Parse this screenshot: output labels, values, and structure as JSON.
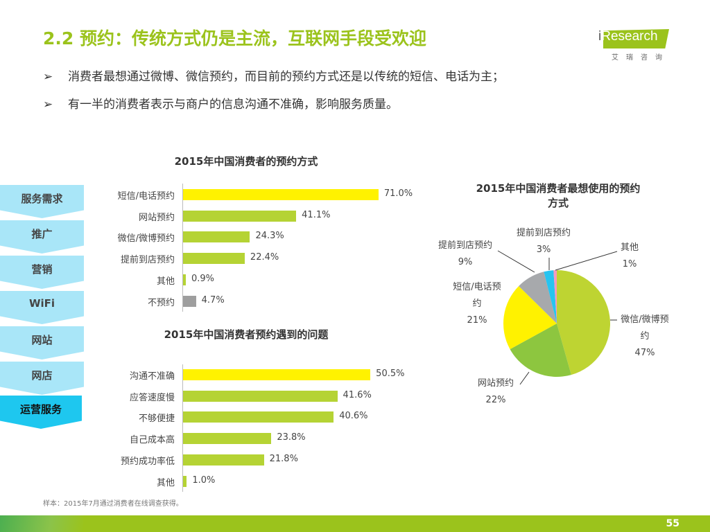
{
  "header": {
    "title": "2.2 预约：传统方式仍是主流，互联网手段受欢迎",
    "logo_text": "iResearch",
    "logo_cn": "艾瑞咨询"
  },
  "bullets": [
    {
      "marker": "➢",
      "text": "消费者最想通过微博、微信预约，而目前的预约方式还是以传统的短信、电话为主；"
    },
    {
      "marker": "➢",
      "text": "有一半的消费者表示与商户的信息沟通不准确，影响服务质量。"
    }
  ],
  "steps": [
    "服务需求",
    "推广",
    "营销",
    "WiFi",
    "网站",
    "网店",
    "运营服务"
  ],
  "chart_data": [
    {
      "type": "bar",
      "orientation": "horizontal",
      "title": "2015年中国消费者的预约方式",
      "categories": [
        "短信/电话预约",
        "网站预约",
        "微信/微博预约",
        "提前到店预约",
        "其他",
        "不预约"
      ],
      "values": [
        71.0,
        41.1,
        24.3,
        22.4,
        0.9,
        4.7
      ],
      "labels": [
        "71.0%",
        "41.1%",
        "24.3%",
        "22.4%",
        "0.9%",
        "4.7%"
      ],
      "colors": [
        "#fff200",
        "#b5d334",
        "#b5d334",
        "#b5d334",
        "#b5d334",
        "#9e9e9e"
      ]
    },
    {
      "type": "bar",
      "orientation": "horizontal",
      "title": "2015年中国消费者预约遇到的问题",
      "categories": [
        "沟通不准确",
        "应答速度慢",
        "不够便捷",
        "自己成本高",
        "预约成功率低",
        "其他"
      ],
      "values": [
        50.5,
        41.6,
        40.6,
        23.8,
        21.8,
        1.0
      ],
      "labels": [
        "50.5%",
        "41.6%",
        "40.6%",
        "23.8%",
        "21.8%",
        "1.0%"
      ],
      "colors": [
        "#fff200",
        "#b5d334",
        "#b5d334",
        "#b5d334",
        "#b5d334",
        "#b5d334"
      ]
    },
    {
      "type": "pie",
      "title": "2015年中国消费者最想使用的预约方式",
      "slices": [
        {
          "name": "微信/微博预约",
          "value": 47,
          "label": "47%",
          "color": "#bed432"
        },
        {
          "name": "网站预约",
          "value": 22,
          "label": "22%",
          "color": "#8dc63f"
        },
        {
          "name": "短信/电话预约",
          "value": 21,
          "label": "21%",
          "color": "#fff200"
        },
        {
          "name": "提前到店预约",
          "value": 9,
          "label": "9%",
          "color": "#a7a9ac"
        },
        {
          "name": "提前到店预约",
          "value": 3,
          "label": "3%",
          "color": "#27c4f0"
        },
        {
          "name": "其他",
          "value": 1,
          "label": "1%",
          "color": "#f49ac1"
        }
      ]
    }
  ],
  "note": "样本：2015年7月通过消费者在线调查获得。",
  "page_number": "55"
}
